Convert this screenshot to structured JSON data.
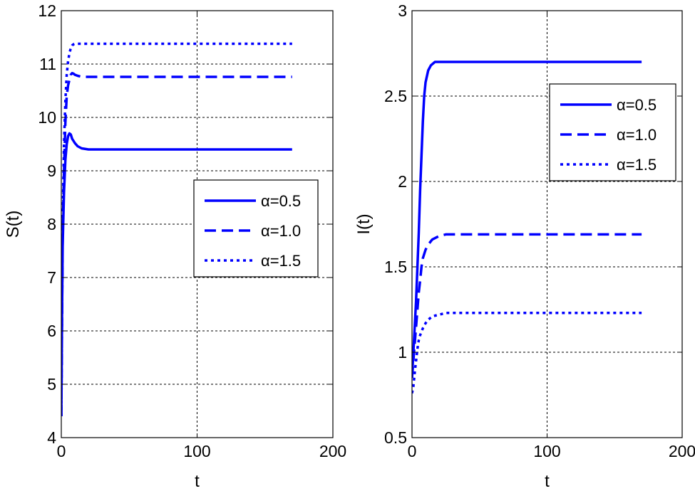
{
  "chart_data": [
    {
      "type": "line",
      "xlabel": "t",
      "ylabel": "S(t)",
      "xlim": [
        0,
        200
      ],
      "ylim": [
        4,
        12
      ],
      "xticks": [
        "0",
        "100",
        "200"
      ],
      "yticks": [
        "4",
        "5",
        "6",
        "7",
        "8",
        "9",
        "10",
        "11",
        "12"
      ],
      "grid": true,
      "legend_position": "right-middle",
      "series": [
        {
          "name": "α=0.5",
          "style": "solid",
          "color": "#0000ff",
          "x": [
            0,
            0.5,
            1,
            2,
            3,
            4,
            5,
            6,
            7,
            8,
            10,
            12,
            15,
            20,
            170
          ],
          "y": [
            4.4,
            6.3,
            7.6,
            8.6,
            9.2,
            9.5,
            9.65,
            9.7,
            9.68,
            9.6,
            9.52,
            9.46,
            9.42,
            9.4,
            9.4
          ]
        },
        {
          "name": "α=1.0",
          "style": "dashed",
          "color": "#0000ff",
          "x": [
            0,
            1,
            2,
            3,
            4,
            5,
            6,
            7,
            8,
            9,
            10,
            12,
            15,
            170
          ],
          "y": [
            4.4,
            7.8,
            9.0,
            9.9,
            10.4,
            10.6,
            10.7,
            10.8,
            10.83,
            10.82,
            10.8,
            10.78,
            10.76,
            10.76
          ]
        },
        {
          "name": "α=1.5",
          "style": "dotted",
          "color": "#0000ff",
          "x": [
            0,
            1,
            2,
            3,
            4,
            5,
            6,
            7,
            8,
            9,
            10,
            12,
            15,
            170
          ],
          "y": [
            4.4,
            8.0,
            9.5,
            10.3,
            10.8,
            11.05,
            11.2,
            11.3,
            11.35,
            11.37,
            11.38,
            11.38,
            11.38,
            11.38
          ]
        }
      ]
    },
    {
      "type": "line",
      "xlabel": "t",
      "ylabel": "I(t)",
      "xlim": [
        0,
        200
      ],
      "ylim": [
        0.5,
        3
      ],
      "xticks": [
        "0",
        "100",
        "200"
      ],
      "yticks": [
        "0.5",
        "1",
        "1.5",
        "2",
        "2.5",
        "3"
      ],
      "grid": true,
      "legend_position": "top-right",
      "series": [
        {
          "name": "α=0.5",
          "style": "solid",
          "color": "#0000ff",
          "x": [
            0,
            1,
            2,
            3,
            4,
            5,
            6,
            7,
            8,
            9,
            10,
            12,
            14,
            17,
            20,
            170
          ],
          "y": [
            0.85,
            1.0,
            1.15,
            1.3,
            1.5,
            1.7,
            1.95,
            2.15,
            2.35,
            2.5,
            2.58,
            2.65,
            2.68,
            2.7,
            2.7,
            2.7
          ]
        },
        {
          "name": "α=1.0",
          "style": "dashed",
          "color": "#0000ff",
          "x": [
            0,
            1,
            2,
            3,
            4,
            5,
            6,
            7,
            8,
            10,
            12,
            15,
            20,
            25,
            30,
            170
          ],
          "y": [
            0.85,
            0.95,
            1.05,
            1.15,
            1.25,
            1.35,
            1.42,
            1.5,
            1.55,
            1.6,
            1.63,
            1.66,
            1.68,
            1.69,
            1.69,
            1.69
          ]
        },
        {
          "name": "α=1.5",
          "style": "dotted",
          "color": "#0000ff",
          "x": [
            0,
            1,
            2,
            3,
            4,
            5,
            6,
            7,
            8,
            10,
            12,
            15,
            20,
            25,
            30,
            170
          ],
          "y": [
            0.76,
            0.8,
            0.88,
            0.95,
            1.02,
            1.07,
            1.1,
            1.12,
            1.14,
            1.17,
            1.19,
            1.21,
            1.22,
            1.23,
            1.23,
            1.23
          ]
        }
      ]
    }
  ]
}
